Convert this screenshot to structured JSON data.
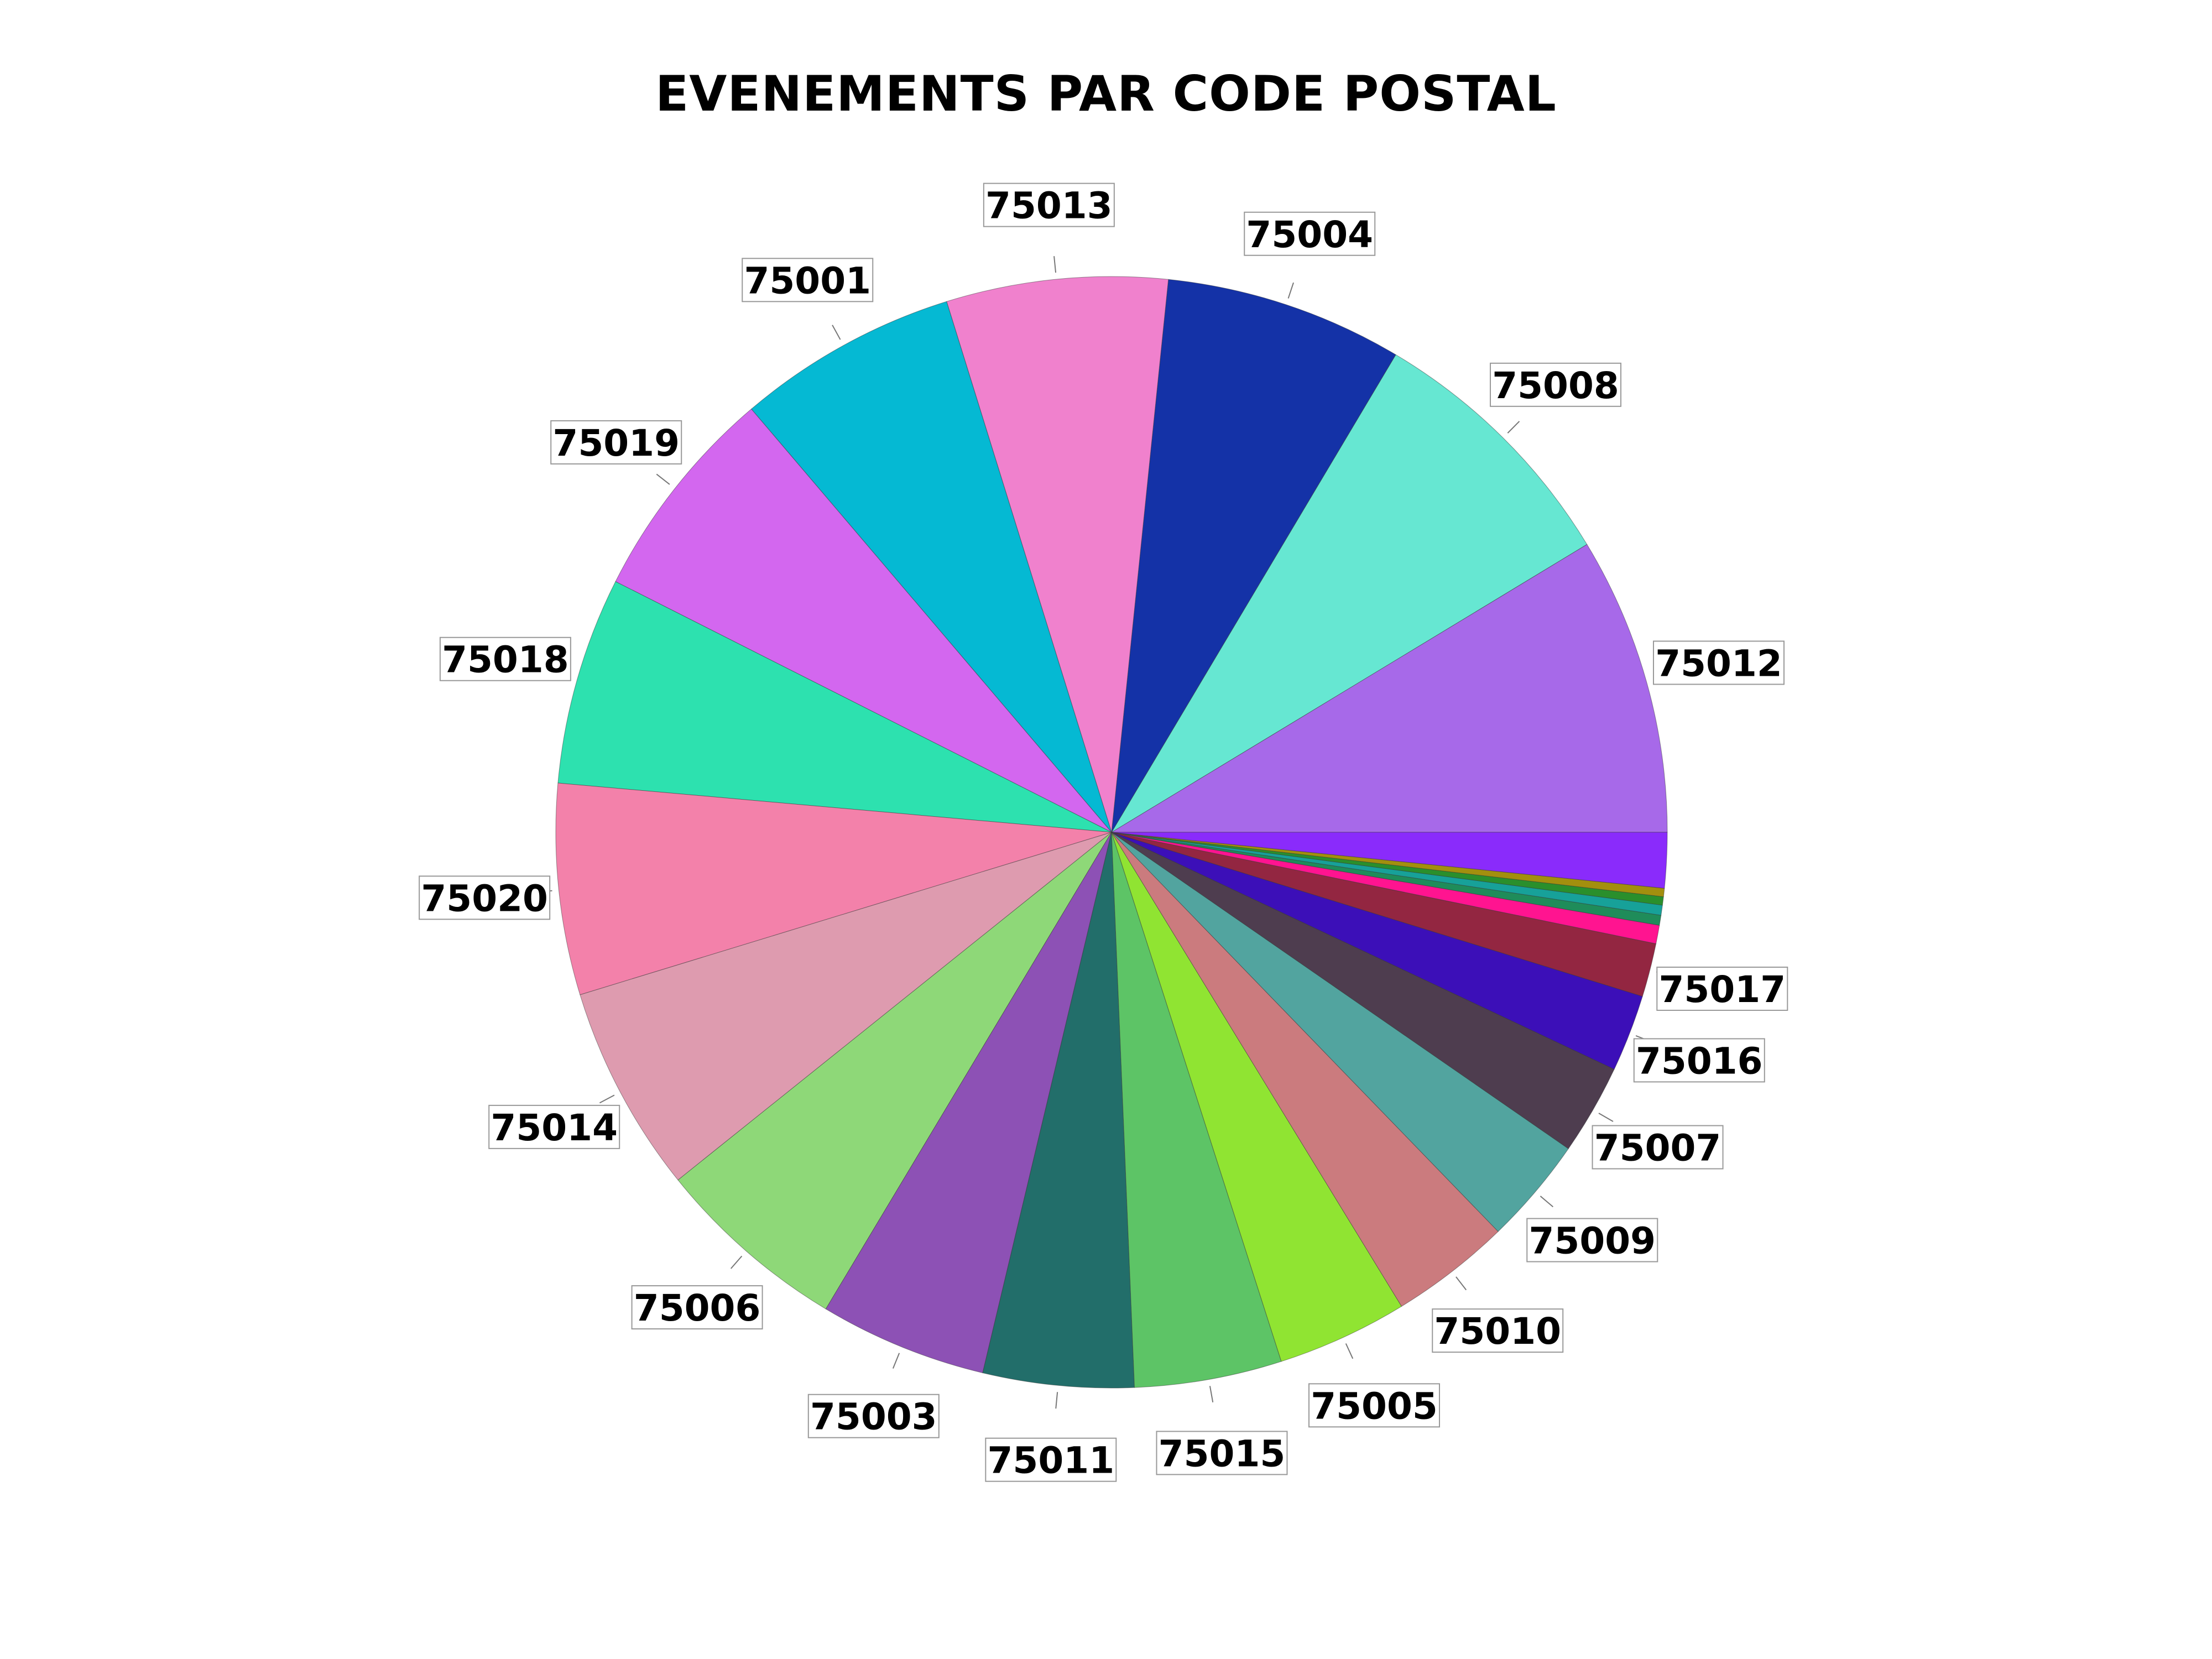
{
  "chart_data": {
    "type": "pie",
    "title": "EVENEMENTS PAR CODE POSTAL",
    "start_angle_deg": 0,
    "direction": "counterclockwise",
    "slices": [
      {
        "label": "75012",
        "value": 8.9,
        "color": "#A769E9"
      },
      {
        "label": "75008",
        "value": 8.0,
        "color": "#66E7D2"
      },
      {
        "label": "75004",
        "value": 7.1,
        "color": "#1432A7"
      },
      {
        "label": "75013",
        "value": 6.6,
        "color": "#F081CD"
      },
      {
        "label": "75001",
        "value": 6.6,
        "color": "#05B9D3"
      },
      {
        "label": "75019",
        "value": 6.5,
        "color": "#D367EF"
      },
      {
        "label": "75018",
        "value": 6.2,
        "color": "#2DE1AF"
      },
      {
        "label": "75020",
        "value": 6.3,
        "color": "#F381AA"
      },
      {
        "label": "75014",
        "value": 6.2,
        "color": "#DE9BAF"
      },
      {
        "label": "75006",
        "value": 5.8,
        "color": "#8ED878"
      },
      {
        "label": "75003",
        "value": 5.0,
        "color": "#8D51B5"
      },
      {
        "label": "75011",
        "value": 4.5,
        "color": "#226E6A"
      },
      {
        "label": "75015",
        "value": 4.4,
        "color": "#5DC466"
      },
      {
        "label": "75005",
        "value": 3.9,
        "color": "#90E432"
      },
      {
        "label": "75010",
        "value": 3.6,
        "color": "#CB7B7E"
      },
      {
        "label": "75009",
        "value": 3.2,
        "color": "#52A49F"
      },
      {
        "label": "75007",
        "value": 2.7,
        "color": "#4E3D4F"
      },
      {
        "label": "75016",
        "value": 2.3,
        "color": "#3C0FB8"
      },
      {
        "label": "75017",
        "value": 1.6,
        "color": "#932641"
      },
      {
        "label": "",
        "value": 0.55,
        "color": "#FF1490"
      },
      {
        "label": "",
        "value": 0.3,
        "color": "#1F8C5A"
      },
      {
        "label": "",
        "value": 0.3,
        "color": "#17A199"
      },
      {
        "label": "",
        "value": 0.25,
        "color": "#2A8F2C"
      },
      {
        "label": "",
        "value": 0.25,
        "color": "#A38F0E"
      },
      {
        "label": "",
        "value": 1.65,
        "color": "#8A2BFB"
      }
    ]
  }
}
